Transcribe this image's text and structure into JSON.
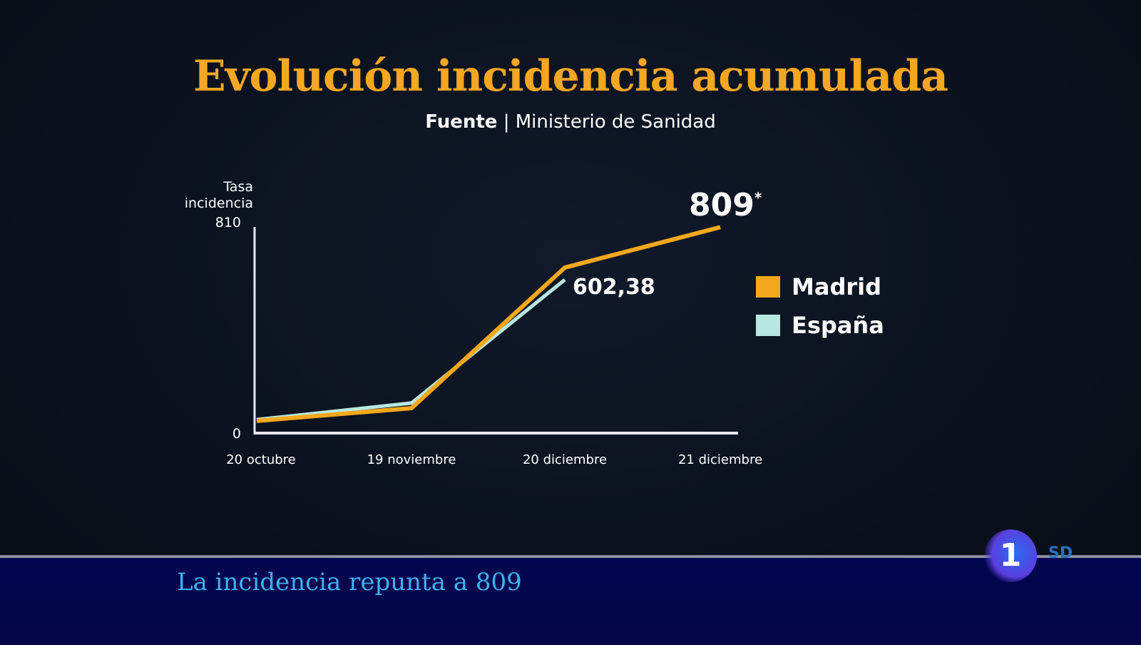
{
  "header": {
    "title": "Evolución incidencia acumulada",
    "source_label": "Fuente",
    "source_sep": "|",
    "source": "Ministerio de Sanidad"
  },
  "chart_data": {
    "type": "line",
    "title": "Evolución incidencia acumulada",
    "ylabel": "Tasa incidencia",
    "ylim": [
      0,
      810
    ],
    "yticks": [
      "0",
      "810"
    ],
    "categories": [
      "20 octubre",
      "19 noviembre",
      "20 diciembre",
      "21 diciembre"
    ],
    "series": [
      {
        "name": "Madrid",
        "color": "#f5a81c",
        "values": [
          48,
          98,
          650,
          809
        ]
      },
      {
        "name": "España",
        "color": "#b8e6e0",
        "values": [
          53,
          118,
          602.38,
          null
        ]
      }
    ],
    "annotations": [
      {
        "series": "Madrid",
        "category": "21 diciembre",
        "text": "809",
        "suffix": "*"
      },
      {
        "series": "España",
        "category": "20 diciembre",
        "text": "602,38"
      }
    ],
    "legend": "right",
    "grid": false
  },
  "ticker": {
    "headline": "La incidencia repunta a 809"
  },
  "channel": {
    "logo": "1",
    "format": "SD"
  }
}
